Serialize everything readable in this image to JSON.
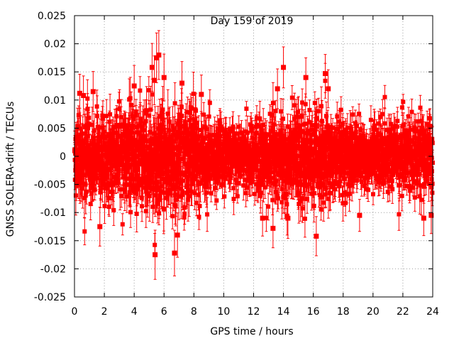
{
  "chart_data": {
    "type": "scatter",
    "title": "Day 159 of 2019",
    "xlabel": "GPS time / hours",
    "ylabel": "GNSS SOLERA-drift / TECUs",
    "xlim": [
      0,
      24
    ],
    "ylim": [
      -0.025,
      0.025
    ],
    "xticks": [
      0,
      2,
      4,
      6,
      8,
      10,
      12,
      14,
      16,
      18,
      20,
      22,
      24
    ],
    "xtick_labels": [
      "0",
      "2",
      "4",
      "6",
      "8",
      "10",
      "12",
      "14",
      "16",
      "18",
      "20",
      "22",
      "24"
    ],
    "yticks": [
      -0.025,
      -0.02,
      -0.015,
      -0.01,
      -0.005,
      0,
      0.005,
      0.01,
      0.015,
      0.02,
      0.025
    ],
    "ytick_labels": [
      "-0.025",
      "-0.02",
      "-0.015",
      "-0.01",
      "-0.005",
      "0",
      "0.005",
      "0.01",
      "0.015",
      "0.02",
      "0.025"
    ],
    "grid": true,
    "series": [
      {
        "name": "GNSS SOLERA-drift",
        "color": "#ff0000",
        "marker": "square",
        "error_bars": true,
        "x_start": 0.0,
        "x_step": 0.01,
        "seed": 159,
        "envelope": {
          "x": [
            0,
            1,
            2,
            3,
            4,
            5,
            5.5,
            6,
            6.5,
            7,
            8,
            9,
            10,
            11,
            12,
            13,
            14,
            15,
            16,
            17,
            18,
            19,
            20,
            21,
            22,
            23,
            24
          ],
          "sigma": [
            0.0035,
            0.004,
            0.0038,
            0.0038,
            0.0042,
            0.0048,
            0.0052,
            0.0048,
            0.0048,
            0.0045,
            0.004,
            0.0034,
            0.0026,
            0.0026,
            0.003,
            0.0038,
            0.0042,
            0.004,
            0.004,
            0.0038,
            0.0032,
            0.003,
            0.0028,
            0.0028,
            0.003,
            0.0032,
            0.0036
          ],
          "error": [
            0.0025,
            0.0028,
            0.0026,
            0.0026,
            0.0028,
            0.0032,
            0.0034,
            0.0032,
            0.0032,
            0.003,
            0.0028,
            0.0025,
            0.002,
            0.002,
            0.0022,
            0.0026,
            0.0028,
            0.0027,
            0.0027,
            0.0026,
            0.0023,
            0.0022,
            0.0021,
            0.0021,
            0.0022,
            0.0023,
            0.0025
          ]
        },
        "highlights": [
          {
            "x": 0.35,
            "y": 0.0112
          },
          {
            "x": 0.6,
            "y": 0.0108
          },
          {
            "x": 1.25,
            "y": 0.0115
          },
          {
            "x": 1.7,
            "y": -0.0125
          },
          {
            "x": 4.0,
            "y": 0.0125
          },
          {
            "x": 5.2,
            "y": 0.0158
          },
          {
            "x": 5.35,
            "y": 0.0135
          },
          {
            "x": 5.5,
            "y": 0.0175
          },
          {
            "x": 5.65,
            "y": 0.018
          },
          {
            "x": 5.4,
            "y": -0.0175
          },
          {
            "x": 6.0,
            "y": 0.014
          },
          {
            "x": 6.7,
            "y": -0.0172
          },
          {
            "x": 6.9,
            "y": -0.014
          },
          {
            "x": 7.2,
            "y": 0.013
          },
          {
            "x": 8.5,
            "y": 0.011
          },
          {
            "x": 12.6,
            "y": -0.011
          },
          {
            "x": 13.3,
            "y": -0.0128
          },
          {
            "x": 13.6,
            "y": 0.012
          },
          {
            "x": 14.0,
            "y": 0.0158
          },
          {
            "x": 14.3,
            "y": -0.011
          },
          {
            "x": 15.5,
            "y": 0.014
          },
          {
            "x": 16.2,
            "y": -0.0142
          },
          {
            "x": 16.8,
            "y": 0.0147
          },
          {
            "x": 17.0,
            "y": 0.012
          },
          {
            "x": 19.1,
            "y": -0.0105
          },
          {
            "x": 23.4,
            "y": -0.011
          },
          {
            "x": 23.9,
            "y": -0.0105
          }
        ]
      }
    ]
  }
}
